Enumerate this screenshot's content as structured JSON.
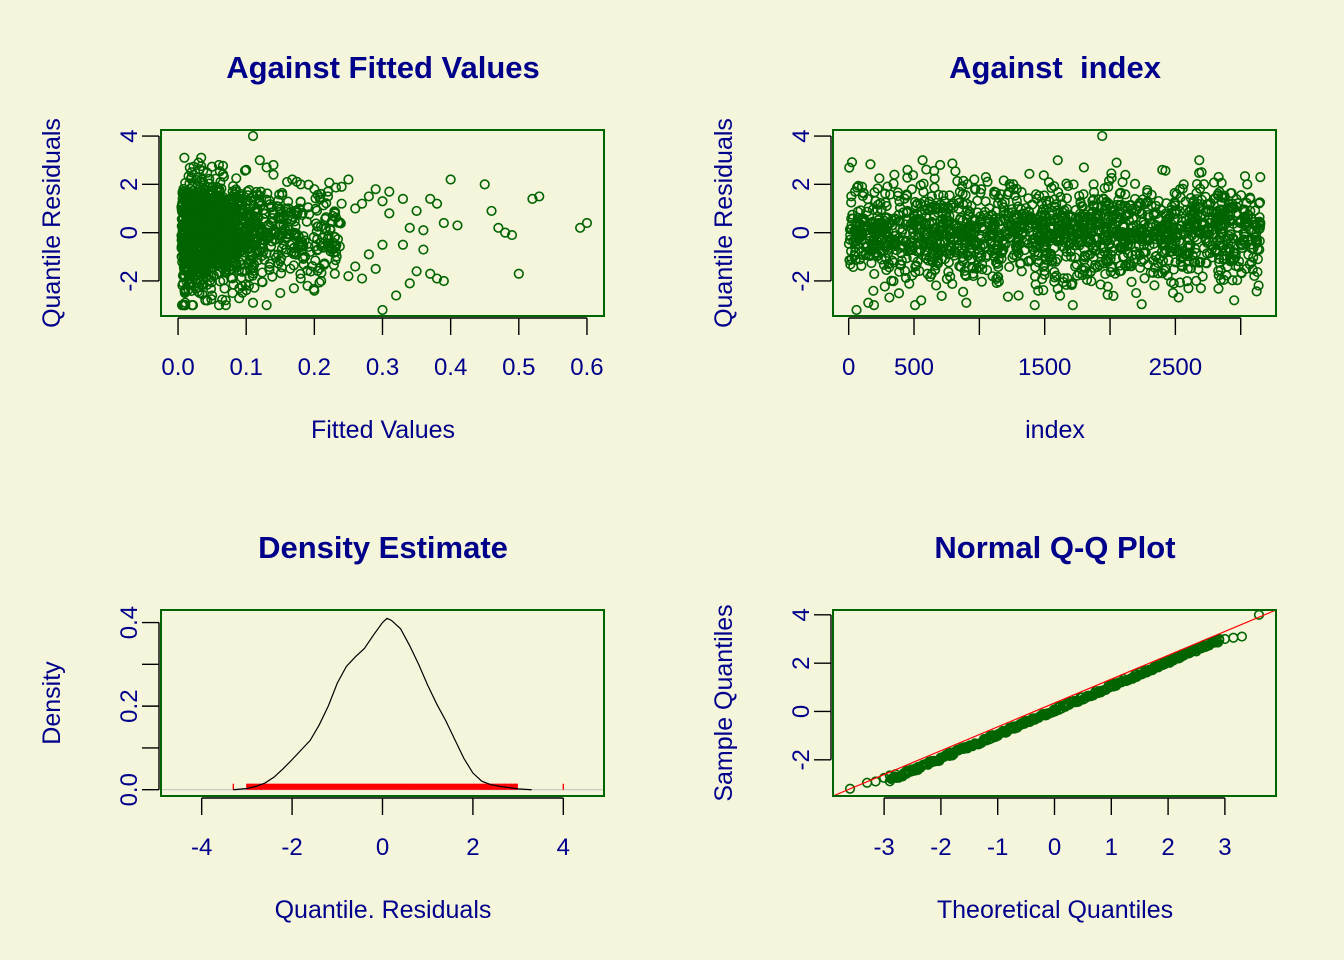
{
  "colors": {
    "background": "#f5f5dc",
    "title": "#00008b",
    "frame": "#006400",
    "points": "#006400",
    "rug": "#ff0000",
    "qqline": "#ff0000"
  },
  "chart_data": [
    {
      "id": "fitted",
      "type": "scatter",
      "title": "Against Fitted Values",
      "xlabel": "Fitted Values",
      "ylabel": "Quantile Residuals",
      "xlim": [
        -0.025,
        0.625
      ],
      "ylim": [
        -3.45,
        4.25
      ],
      "xticks": [
        0.0,
        0.1,
        0.2,
        0.3,
        0.4,
        0.5,
        0.6
      ],
      "xtick_labels": [
        "0.0",
        "0.1",
        "0.2",
        "0.3",
        "0.4",
        "0.5",
        "0.6"
      ],
      "yticks": [
        -2,
        0,
        2,
        4
      ],
      "ytick_labels": [
        "-2",
        "0",
        "2",
        "4"
      ],
      "points": {
        "x": [
          0.11,
          0.03,
          0.02,
          0.04,
          0.08,
          0.12,
          0.14,
          0.16,
          0.18,
          0.2,
          0.22,
          0.24,
          0.25,
          0.26,
          0.27,
          0.28,
          0.29,
          0.3,
          0.31,
          0.3,
          0.32,
          0.33,
          0.34,
          0.35,
          0.36,
          0.37,
          0.38,
          0.39,
          0.4,
          0.41,
          0.37,
          0.38,
          0.39,
          0.35,
          0.36,
          0.33,
          0.34,
          0.29,
          0.27,
          0.26,
          0.3,
          0.31,
          0.28,
          0.25,
          0.45,
          0.46,
          0.47,
          0.48,
          0.49,
          0.5,
          0.52,
          0.53,
          0.6,
          0.59,
          0.05,
          0.07,
          0.09,
          0.13,
          0.15,
          0.13,
          0.14,
          0.1,
          0.06,
          0.02,
          0.01,
          0.17,
          0.19,
          0.21,
          0.23,
          0.24,
          0.22,
          0.2,
          0.21,
          0.18,
          0.11
        ],
        "y": [
          4.0,
          2.9,
          2.3,
          -2.8,
          -2.5,
          3.0,
          2.4,
          2.1,
          2.0,
          1.8,
          1.7,
          1.9,
          2.2,
          1.0,
          1.2,
          1.5,
          1.8,
          1.3,
          1.7,
          -3.2,
          -2.6,
          1.4,
          -2.1,
          0.9,
          0.1,
          1.4,
          1.2,
          0.4,
          2.2,
          0.3,
          -1.7,
          -1.9,
          -2.0,
          -1.6,
          -0.7,
          -0.5,
          0.2,
          -1.5,
          -1.9,
          -1.4,
          -0.5,
          0.8,
          -0.9,
          -1.8,
          2.0,
          0.9,
          0.2,
          0.0,
          -0.1,
          -1.7,
          1.4,
          1.5,
          0.4,
          0.2,
          -2.6,
          -2.8,
          -2.3,
          -3.0,
          -2.5,
          2.7,
          2.8,
          2.6,
          2.8,
          2.5,
          -2.5,
          -2.3,
          -2.2,
          -2.0,
          -1.7,
          1.2,
          1.5,
          -2.4,
          1.6,
          -1.9,
          -2.9
        ]
      },
      "note": "Points were read off the dense cloud visible in the screenshot."
    },
    {
      "id": "index",
      "type": "scatter",
      "title": "Against  index",
      "xlabel": "index",
      "ylabel": "Quantile Residuals",
      "xlim": [
        -120,
        3270
      ],
      "ylim": [
        -3.45,
        4.25
      ],
      "xticks": [
        0,
        500,
        1000,
        1500,
        2000,
        2500,
        3000
      ],
      "xtick_labels": [
        "0",
        "500",
        "",
        "1500",
        "",
        "2500",
        ""
      ],
      "yticks": [
        -2,
        0,
        2,
        4
      ],
      "ytick_labels": [
        "-2",
        "0",
        "2",
        "4"
      ],
      "points": {
        "x": [
          1940,
          60,
          3150,
          2950,
          1300,
          700,
          350,
          1600,
          2400,
          900,
          1800,
          2200,
          2700,
          150,
          450,
          1050,
          1450,
          2050,
          2600,
          3050
        ],
        "y": [
          4.0,
          -3.2,
          2.3,
          -2.8,
          -2.6,
          2.8,
          2.4,
          3.0,
          2.6,
          -2.9,
          2.7,
          -2.5,
          2.5,
          -2.9,
          2.6,
          2.3,
          -2.4,
          2.9,
          -2.3,
          2.0
        ]
      }
    },
    {
      "id": "density",
      "type": "line",
      "title": "Density Estimate",
      "xlabel": "Quantile. Residuals",
      "ylabel": "Density",
      "xlim": [
        -4.9,
        4.9
      ],
      "ylim": [
        -0.015,
        0.43
      ],
      "xticks": [
        -4,
        -2,
        0,
        2,
        4
      ],
      "xtick_labels": [
        "-4",
        "-2",
        "0",
        "2",
        "4"
      ],
      "yticks": [
        0.0,
        0.1,
        0.2,
        0.3,
        0.4
      ],
      "ytick_labels": [
        "0.0",
        "",
        "0.2",
        "",
        "0.4"
      ],
      "curve": {
        "x": [
          -3.3,
          -3.0,
          -2.8,
          -2.6,
          -2.4,
          -2.2,
          -2.0,
          -1.8,
          -1.6,
          -1.4,
          -1.2,
          -1.0,
          -0.8,
          -0.6,
          -0.4,
          -0.2,
          0.0,
          0.1,
          0.2,
          0.4,
          0.6,
          0.8,
          1.0,
          1.2,
          1.4,
          1.6,
          1.8,
          2.0,
          2.2,
          2.4,
          2.6,
          2.8,
          3.0,
          3.3
        ],
        "y": [
          0.0,
          0.003,
          0.008,
          0.016,
          0.03,
          0.05,
          0.072,
          0.095,
          0.118,
          0.155,
          0.2,
          0.255,
          0.295,
          0.318,
          0.338,
          0.37,
          0.4,
          0.41,
          0.405,
          0.385,
          0.345,
          0.3,
          0.25,
          0.205,
          0.165,
          0.12,
          0.075,
          0.04,
          0.02,
          0.012,
          0.008,
          0.005,
          0.002,
          0.0
        ]
      },
      "rug": {
        "range": [
          -3.0,
          3.0
        ],
        "extra": [
          -3.3,
          -2.85,
          -2.7,
          2.25,
          2.4,
          2.55,
          2.7,
          2.85,
          2.95,
          4.0
        ]
      }
    },
    {
      "id": "qq",
      "type": "scatter",
      "title": "Normal Q-Q Plot",
      "xlabel": "Theoretical Quantiles",
      "ylabel": "Sample Quantiles",
      "xlim": [
        -3.9,
        3.9
      ],
      "ylim": [
        -3.5,
        4.2
      ],
      "xticks": [
        -3,
        -2,
        -1,
        0,
        1,
        2,
        3
      ],
      "xtick_labels": [
        "-3",
        "-2",
        "-1",
        "0",
        "1",
        "2",
        "3"
      ],
      "yticks": [
        -2,
        0,
        2,
        4
      ],
      "ytick_labels": [
        "-2",
        "0",
        "2",
        "4"
      ],
      "points": {
        "x": [
          -3.6,
          -3.3,
          -3.15,
          -3.0,
          -2.9,
          -2.8,
          -2.6,
          -2.4,
          -2.2,
          -2.0,
          -1.8,
          -1.6,
          -1.4,
          -1.2,
          -1.0,
          -0.8,
          -0.6,
          -0.4,
          -0.2,
          0.0,
          0.2,
          0.4,
          0.6,
          0.8,
          1.0,
          1.2,
          1.4,
          1.6,
          1.8,
          2.0,
          2.2,
          2.4,
          2.6,
          2.8,
          2.9,
          3.0,
          3.15,
          3.3,
          3.6
        ],
        "y": [
          -3.2,
          -2.95,
          -2.9,
          -2.75,
          -2.65,
          -2.6,
          -2.45,
          -2.3,
          -2.1,
          -1.95,
          -1.75,
          -1.55,
          -1.35,
          -1.15,
          -0.95,
          -0.75,
          -0.55,
          -0.35,
          -0.15,
          0.05,
          0.25,
          0.45,
          0.65,
          0.85,
          1.05,
          1.25,
          1.45,
          1.65,
          1.85,
          2.05,
          2.25,
          2.45,
          2.65,
          2.85,
          2.95,
          3.0,
          3.05,
          3.1,
          4.0
        ]
      },
      "qqline": {
        "x": [
          -3.9,
          3.9
        ],
        "y": [
          -3.5,
          4.2
        ]
      }
    }
  ]
}
